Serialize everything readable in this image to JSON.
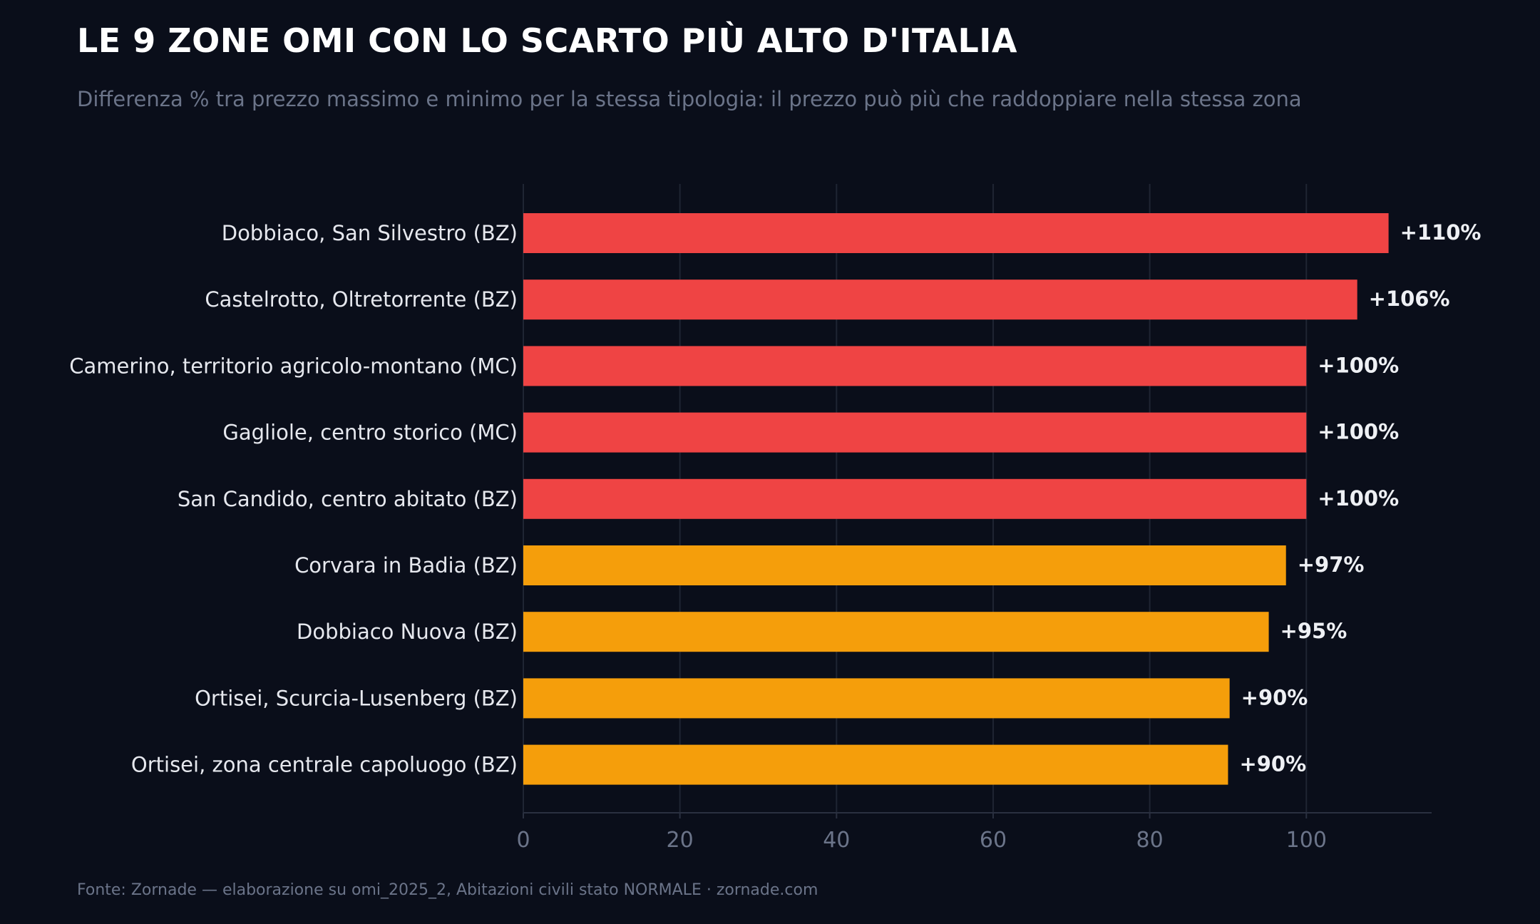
{
  "header": {
    "title": "LE 9 ZONE OMI CON LO SCARTO PIÙ ALTO D'ITALIA",
    "subtitle": "Differenza % tra prezzo massimo e minimo per la stessa tipologia: il prezzo può più che raddoppiare nella stessa zona"
  },
  "footer": {
    "source": "Fonte: Zornade — elaborazione su omi_2025_2, Abitazioni civili stato NORMALE · zornade.com"
  },
  "colors": {
    "background": "#0a0e1a",
    "high": "#ef4444",
    "mid": "#f59e0b",
    "grid": "#1f2533",
    "axis": "#2a3040"
  },
  "chart_data": {
    "type": "bar",
    "orientation": "horizontal",
    "categories": [
      "Dobbiaco, San Silvestro (BZ)",
      "Castelrotto, Oltretorrente (BZ)",
      "Camerino, territorio agricolo-montano (MC)",
      "Gagliole, centro storico (MC)",
      "San Candido, centro abitato (BZ)",
      "Corvara in Badia (BZ)",
      "Dobbiaco Nuova (BZ)",
      "Ortisei, Scurcia-Lusenberg (BZ)",
      "Ortisei, zona centrale capoluogo (BZ)"
    ],
    "values": [
      110.5,
      106.5,
      100,
      100,
      100,
      97.4,
      95.2,
      90.2,
      90
    ],
    "value_labels": [
      "+110%",
      "+106%",
      "+100%",
      "+100%",
      "+100%",
      "+97%",
      "+95%",
      "+90%",
      "+90%"
    ],
    "bar_colors": [
      "#ef4444",
      "#ef4444",
      "#ef4444",
      "#ef4444",
      "#ef4444",
      "#f59e0b",
      "#f59e0b",
      "#f59e0b",
      "#f59e0b"
    ],
    "xlim": [
      0,
      116
    ],
    "xticks": [
      0,
      20,
      40,
      60,
      80,
      100
    ],
    "grid": "vertical"
  }
}
